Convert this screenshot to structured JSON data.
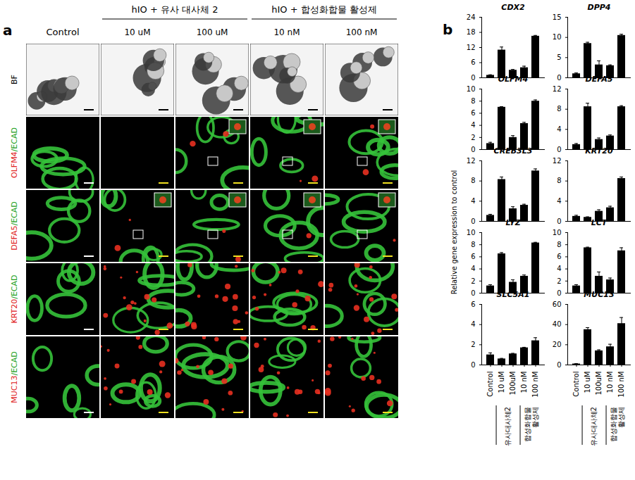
{
  "panel_a": {
    "label": "a",
    "header": [
      {
        "text": "Control"
      },
      {
        "group": "hIO + 유사 대사체 2",
        "columns": [
          "10 uM",
          "100 uM"
        ]
      },
      {
        "group": "hIO + 합성화합물 활성제",
        "columns": [
          "10 nM",
          "100 nM"
        ]
      }
    ],
    "rows": [
      "BF",
      "OLFM4/ECAD",
      "DEFA5/ECAD",
      "KRT20/ECAD",
      "MUC13/ECAD"
    ]
  },
  "panel_b": {
    "label": "b",
    "y_axis_label": "Relative gene expression to control",
    "groups": [
      {
        "label": "유사대사체2",
        "categories": [
          "10 uM",
          "100uM"
        ]
      },
      {
        "label": "합성화합물 활성제",
        "categories": [
          "10 nM",
          "100 nM"
        ]
      }
    ]
  },
  "chart_data": [
    {
      "type": "bar",
      "title": "CDX2",
      "categories": [
        "Control",
        "10 uM",
        "100uM",
        "10 nM",
        "100 nM"
      ],
      "values": [
        1,
        11,
        3,
        4,
        16.5
      ],
      "errors": [
        0.2,
        1.2,
        0.3,
        0.6,
        0.3
      ],
      "color": "#000000",
      "ylim": [
        0,
        24
      ],
      "yticks": [
        0,
        6,
        12,
        18,
        24
      ],
      "tick_labels": "y"
    },
    {
      "type": "bar",
      "title": "DPP4",
      "categories": [
        "Control",
        "10 uM",
        "100uM",
        "10 nM",
        "100 nM"
      ],
      "values": [
        1,
        8.5,
        3.2,
        3,
        10.5
      ],
      "errors": [
        0.2,
        0.3,
        1,
        0.2,
        0.3
      ],
      "color": "#000000",
      "ylim": [
        0,
        15
      ],
      "yticks": [
        0,
        5,
        10,
        15
      ],
      "tick_labels": "y"
    },
    {
      "type": "bar",
      "title": "OLFM4",
      "categories": [
        "Control",
        "10 uM",
        "100uM",
        "10 nM",
        "100 nM"
      ],
      "values": [
        1,
        7,
        2,
        4.3,
        8
      ],
      "errors": [
        0.2,
        0.1,
        0.3,
        0.2,
        0.2
      ],
      "color": "#000000",
      "ylim": [
        0,
        10
      ],
      "yticks": [
        0,
        2,
        4,
        6,
        8,
        10
      ],
      "tick_labels": "y"
    },
    {
      "type": "bar",
      "title": "DEFA5",
      "categories": [
        "Control",
        "10 uM",
        "100uM",
        "10 nM",
        "100 nM"
      ],
      "values": [
        1,
        8.5,
        2,
        2.7,
        8.5
      ],
      "errors": [
        0.2,
        0.7,
        0.3,
        0.2,
        0.2
      ],
      "color": "#000000",
      "ylim": [
        0,
        12
      ],
      "yticks": [
        0,
        4,
        8,
        12
      ],
      "tick_labels": "y"
    },
    {
      "type": "bar",
      "title": "CREB3L3",
      "categories": [
        "Control",
        "10 uM",
        "100uM",
        "10 nM",
        "100 nM"
      ],
      "values": [
        1.2,
        8.3,
        2.5,
        3.2,
        10
      ],
      "errors": [
        0.2,
        0.5,
        0.4,
        0.2,
        0.4
      ],
      "color": "#000000",
      "ylim": [
        0,
        12
      ],
      "yticks": [
        0,
        4,
        8,
        12
      ],
      "tick_labels": "y"
    },
    {
      "type": "bar",
      "title": "KRT20",
      "categories": [
        "Control",
        "10 uM",
        "100uM",
        "10 nM",
        "100 nM"
      ],
      "values": [
        1,
        0.8,
        2,
        2.7,
        8.5
      ],
      "errors": [
        0.2,
        0.1,
        0.3,
        0.3,
        0.3
      ],
      "color": "#000000",
      "ylim": [
        0,
        12
      ],
      "yticks": [
        0,
        4,
        8,
        12
      ],
      "tick_labels": "y"
    },
    {
      "type": "bar",
      "title": "LYZ",
      "categories": [
        "Control",
        "10 uM",
        "100uM",
        "10 nM",
        "100 nM"
      ],
      "values": [
        1.2,
        6.5,
        1.8,
        2.8,
        8.3
      ],
      "errors": [
        0.2,
        0.2,
        0.4,
        0.2,
        0.1
      ],
      "color": "#000000",
      "ylim": [
        0,
        10
      ],
      "yticks": [
        0,
        2,
        4,
        6,
        8,
        10
      ],
      "tick_labels": "y"
    },
    {
      "type": "bar",
      "title": "LCT",
      "categories": [
        "Control",
        "10 uM",
        "100uM",
        "10 nM",
        "100 nM"
      ],
      "values": [
        1.2,
        7.5,
        2.8,
        2.2,
        7
      ],
      "errors": [
        0.2,
        0.1,
        0.7,
        0.3,
        0.5
      ],
      "color": "#000000",
      "ylim": [
        0,
        10
      ],
      "yticks": [
        0,
        2,
        4,
        6,
        8,
        10
      ],
      "tick_labels": "y"
    },
    {
      "type": "bar",
      "title": "SLC5A1",
      "categories": [
        "Control",
        "10 uM",
        "100uM",
        "10 nM",
        "100 nM"
      ],
      "values": [
        1,
        0.6,
        1.1,
        1.7,
        2.4
      ],
      "errors": [
        0.2,
        0.05,
        0.05,
        0.05,
        0.3
      ],
      "color": "#000000",
      "ylim": [
        0,
        6
      ],
      "yticks": [
        0,
        2,
        4,
        6
      ],
      "tick_labels": true
    },
    {
      "type": "bar",
      "title": "MUC13",
      "categories": [
        "Control",
        "10 uM",
        "100uM",
        "10 nM",
        "100 nM"
      ],
      "values": [
        1,
        35,
        14,
        18,
        41
      ],
      "errors": [
        0.3,
        2,
        1,
        2.5,
        6
      ],
      "color": "#000000",
      "ylim": [
        0,
        60
      ],
      "yticks": [
        0,
        20,
        40,
        60
      ],
      "tick_labels": true
    }
  ]
}
